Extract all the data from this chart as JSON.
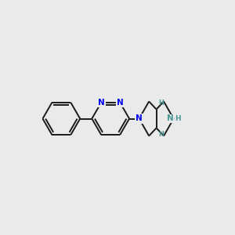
{
  "bg_color": "#eaeaea",
  "bond_color": "#1a1a1a",
  "n_color_blue": "#0000ee",
  "n_color_teal": "#4a9898",
  "line_width": 1.4,
  "font_size_N": 7.5,
  "font_size_H": 6.5,
  "fig_width": 3.0,
  "fig_height": 3.0,
  "dpi": 100,
  "xlim": [
    -2.2,
    1.5
  ],
  "ylim": [
    -0.85,
    0.85
  ]
}
